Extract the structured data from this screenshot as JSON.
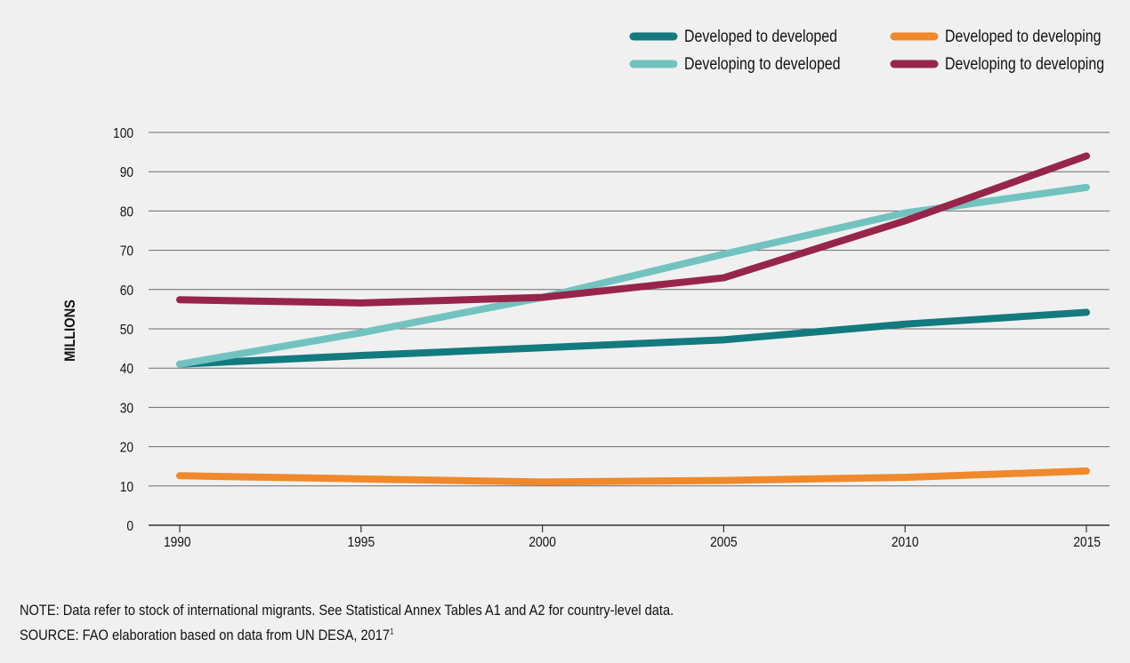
{
  "chart_data": {
    "type": "line",
    "x": [
      1990,
      1995,
      2000,
      2005,
      2010,
      2015
    ],
    "ylabel": "MILLIONS",
    "ylim": [
      0,
      100
    ],
    "yticks": [
      0,
      10,
      20,
      30,
      40,
      50,
      60,
      70,
      80,
      90,
      100
    ],
    "grid": "horizontal",
    "legend_position": "top-right",
    "series": [
      {
        "name": "Developed to developed",
        "color": "#137a7f",
        "values": [
          41,
          43.2,
          45.2,
          47.2,
          51.2,
          54.2
        ]
      },
      {
        "name": "Developed to developing",
        "color": "#f0892c",
        "values": [
          12.6,
          11.8,
          11,
          11.4,
          12.2,
          13.8
        ]
      },
      {
        "name": "Developing to developed",
        "color": "#72c3bf",
        "values": [
          41,
          49,
          58,
          69,
          79.5,
          86
        ]
      },
      {
        "name": "Developing to developing",
        "color": "#97254a",
        "values": [
          57.4,
          56.6,
          58,
          63,
          77.5,
          94
        ]
      }
    ]
  },
  "note": {
    "text": "NOTE: Data refer to stock of international migrants. See Statistical Annex Tables A1 and A2 for country-level data.",
    "source": "SOURCE: FAO elaboration based on data from UN DESA, 2017",
    "source_ref": "1"
  }
}
